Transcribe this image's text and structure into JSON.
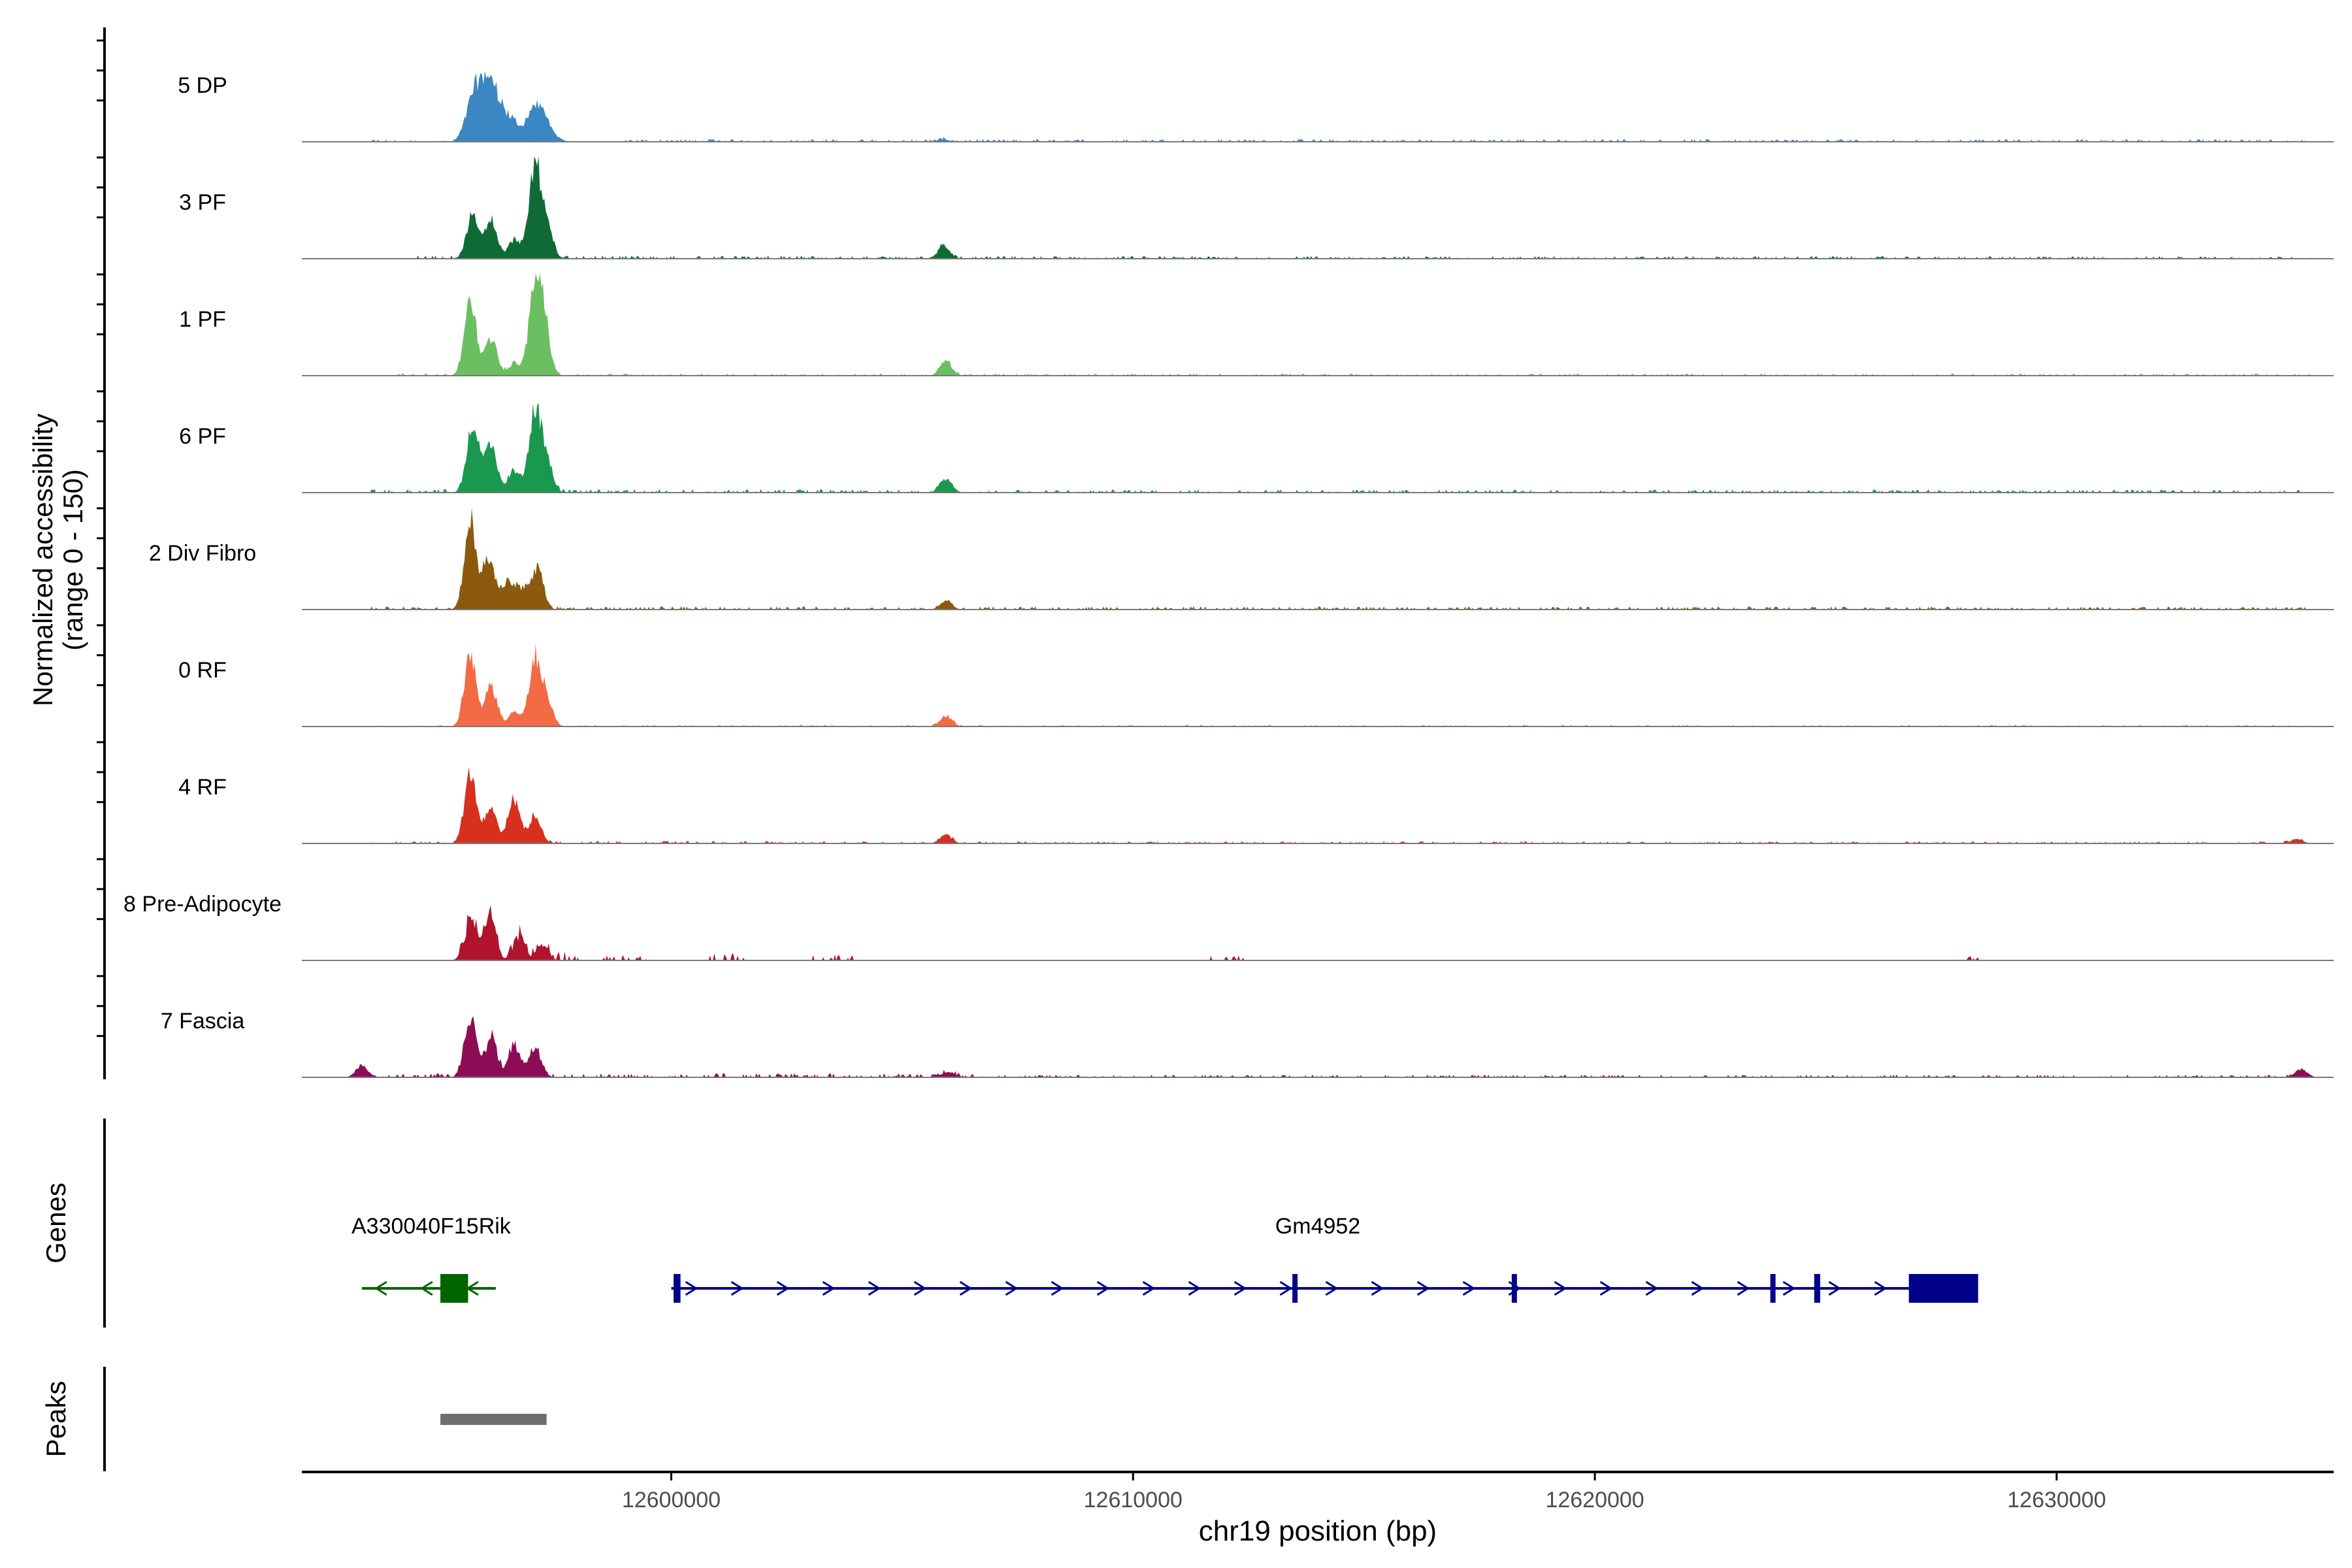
{
  "chart_data": {
    "type": "area",
    "ylabel_line1": "Normalized accessibility",
    "ylabel_line2": "(range 0 - 150)",
    "xlabel": "chr19 position (bp)",
    "xlim": [
      12592000,
      12636000
    ],
    "xticks": [
      12600000,
      12610000,
      12620000,
      12630000
    ],
    "xtick_labels": [
      "12600000",
      "12610000",
      "12620000",
      "12630000"
    ],
    "genes_label": "Genes",
    "peaks_label": "Peaks",
    "tracks": [
      {
        "name": "5 DP",
        "color": "#3A87C3",
        "peaks": [
          [
            12595600,
            0.2
          ],
          [
            12595800,
            0.46
          ],
          [
            12596050,
            0.55
          ],
          [
            12596300,
            0.34
          ],
          [
            12596600,
            0.2
          ],
          [
            12597000,
            0.34
          ],
          [
            12597250,
            0.22
          ],
          [
            12597500,
            0.04
          ],
          [
            12605900,
            0.02
          ]
        ],
        "noise": [
          [
            12593500,
            12597000,
            0.02
          ],
          [
            12599000,
            12635500,
            0.025
          ]
        ]
      },
      {
        "name": "3 PF",
        "color": "#0F6B35",
        "peaks": [
          [
            12595700,
            0.42
          ],
          [
            12596100,
            0.38
          ],
          [
            12596600,
            0.18
          ],
          [
            12597050,
            0.92
          ],
          [
            12597300,
            0.3
          ],
          [
            12605900,
            0.12
          ]
        ],
        "noise": [
          [
            12594500,
            12603500,
            0.03
          ],
          [
            12603500,
            12635500,
            0.025
          ]
        ]
      },
      {
        "name": "1 PF",
        "color": "#6BBF61",
        "peaks": [
          [
            12595650,
            0.72
          ],
          [
            12596100,
            0.38
          ],
          [
            12596600,
            0.12
          ],
          [
            12597050,
            0.88
          ],
          [
            12597250,
            0.45
          ],
          [
            12605950,
            0.14
          ]
        ],
        "noise": [
          [
            12594000,
            12603500,
            0.02
          ],
          [
            12603500,
            12635500,
            0.02
          ]
        ]
      },
      {
        "name": "6 PF",
        "color": "#1A9850",
        "peaks": [
          [
            12595700,
            0.7
          ],
          [
            12596100,
            0.45
          ],
          [
            12596600,
            0.22
          ],
          [
            12597050,
            0.8
          ],
          [
            12597300,
            0.28
          ],
          [
            12605950,
            0.14
          ]
        ],
        "noise": [
          [
            12593500,
            12603500,
            0.035
          ],
          [
            12603500,
            12635500,
            0.03
          ]
        ]
      },
      {
        "name": "2 Div Fibro",
        "color": "#8B5A0E",
        "peaks": [
          [
            12595650,
            0.85
          ],
          [
            12596050,
            0.5
          ],
          [
            12596450,
            0.25
          ],
          [
            12596750,
            0.2
          ],
          [
            12597100,
            0.42
          ],
          [
            12605950,
            0.08
          ]
        ],
        "noise": [
          [
            12593500,
            12603500,
            0.03
          ],
          [
            12603500,
            12635500,
            0.03
          ]
        ]
      },
      {
        "name": "0 RF",
        "color": "#F26B45",
        "peaks": [
          [
            12595650,
            0.7
          ],
          [
            12596100,
            0.4
          ],
          [
            12596600,
            0.14
          ],
          [
            12597050,
            0.65
          ],
          [
            12597300,
            0.25
          ],
          [
            12605950,
            0.1
          ]
        ],
        "noise": [
          [
            12593500,
            12603500,
            0.015
          ],
          [
            12603500,
            12635500,
            0.015
          ]
        ]
      },
      {
        "name": "4 RF",
        "color": "#D7301F",
        "peaks": [
          [
            12595650,
            0.68
          ],
          [
            12596100,
            0.35
          ],
          [
            12596600,
            0.42
          ],
          [
            12597050,
            0.28
          ],
          [
            12605950,
            0.08
          ],
          [
            12635200,
            0.04
          ]
        ],
        "noise": [
          [
            12593500,
            12603500,
            0.025
          ],
          [
            12603500,
            12635500,
            0.02
          ]
        ]
      },
      {
        "name": "8 Pre-Adipocyte",
        "color": "#B0142D",
        "peaks": [
          [
            12595650,
            0.38
          ],
          [
            12596050,
            0.42
          ],
          [
            12596700,
            0.22
          ],
          [
            12597200,
            0.14
          ]
        ],
        "noise": [
          [
            12595400,
            12598000,
            0.1
          ],
          [
            12598500,
            12599500,
            0.06
          ],
          [
            12600800,
            12601700,
            0.07
          ],
          [
            12603000,
            12604100,
            0.06
          ],
          [
            12611600,
            12612400,
            0.05
          ],
          [
            12627600,
            12628600,
            0.04
          ],
          [
            12635200,
            12635300,
            0.04
          ]
        ]
      },
      {
        "name": "7 Fascia",
        "color": "#8C0D55",
        "peaks": [
          [
            12593300,
            0.12
          ],
          [
            12595650,
            0.6
          ],
          [
            12596100,
            0.4
          ],
          [
            12596600,
            0.32
          ],
          [
            12597050,
            0.3
          ],
          [
            12606000,
            0.05
          ],
          [
            12635300,
            0.08
          ]
        ],
        "noise": [
          [
            12593500,
            12603500,
            0.04
          ],
          [
            12603500,
            12607000,
            0.04
          ],
          [
            12607000,
            12635500,
            0.025
          ]
        ]
      }
    ],
    "genes": [
      {
        "name": "A330040F15Rik",
        "strand": "-",
        "color": "#006400",
        "start": 12593300,
        "end": 12596200,
        "exons": [
          [
            12595000,
            12595600
          ]
        ],
        "label_x": 12594800
      },
      {
        "name": "Gm4952",
        "strand": "+",
        "color": "#00008B",
        "start": 12600000,
        "end": 12628000,
        "exons": [
          [
            12600050,
            12600200
          ],
          [
            12613450,
            12613520
          ],
          [
            12618200,
            12618280
          ],
          [
            12623800,
            12623880
          ],
          [
            12624750,
            12624880
          ],
          [
            12626800,
            12628300
          ]
        ],
        "label_x": 12614000
      }
    ],
    "peak_regions": [
      [
        12595000,
        12597300
      ]
    ],
    "peak_color": "#6E6E6E"
  }
}
